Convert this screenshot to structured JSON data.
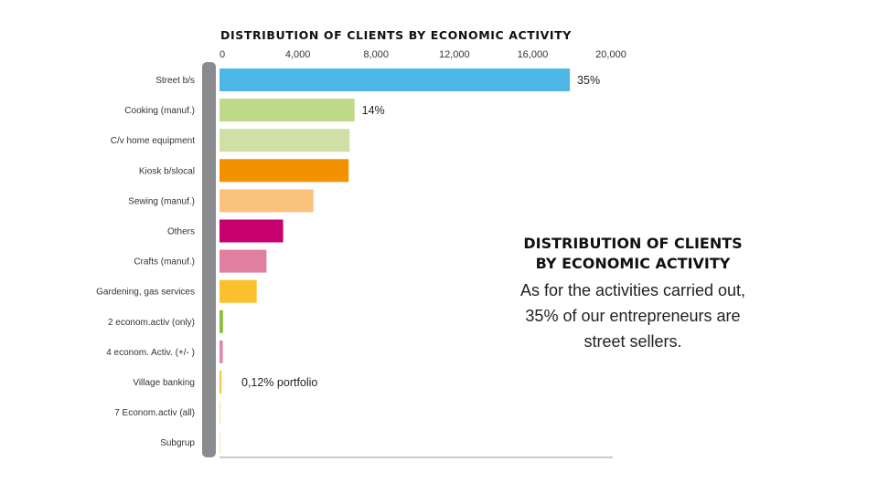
{
  "chart_data": {
    "type": "bar",
    "orientation": "horizontal",
    "title": "DISTRIBUTION OF CLIENTS BY ECONOMIC ACTIVITY",
    "xlim": [
      0,
      20000
    ],
    "xticks": [
      "0",
      "4,000",
      "8,000",
      "12,000",
      "16,000",
      "20,000"
    ],
    "tick_values": [
      0,
      4000,
      8000,
      12000,
      16000,
      20000
    ],
    "grid": false,
    "categories": [
      "Street b/s",
      "Cooking (manuf.)",
      "C/v home equipment",
      "Kiosk b/slocal",
      "Sewing (manuf.)",
      "Others",
      "Crafts (manuf.)",
      "Gardening, gas services",
      "2 econom.activ (only)",
      "4 econom. Activ. (+/- )",
      "Village banking",
      "7 Econom.activ (all)",
      "Subgrup"
    ],
    "values": [
      17900,
      6900,
      6650,
      6600,
      4800,
      3250,
      2400,
      1900,
      180,
      170,
      100,
      40,
      25
    ],
    "colors": [
      "#4db8e8",
      "#bfd98a",
      "#cfe0a4",
      "#f29200",
      "#fac27d",
      "#c7006e",
      "#e07fa0",
      "#fbc02d",
      "#8bbf3a",
      "#e08aa8",
      "#f6c447",
      "#f3dc8a",
      "#f5e3b0"
    ],
    "annotations": [
      {
        "category_index": 0,
        "text": "35%"
      },
      {
        "category_index": 1,
        "text": "14%"
      },
      {
        "category_index": 10,
        "text": "0,12% portfolio"
      }
    ]
  },
  "side_panel": {
    "title_line1": "DISTRIBUTION OF CLIENTS",
    "title_line2": "BY ECONOMIC ACTIVITY",
    "body_line1": "As for the activities carried out,",
    "body_line2": "35% of our entrepreneurs are",
    "body_line3": "street sellers."
  }
}
